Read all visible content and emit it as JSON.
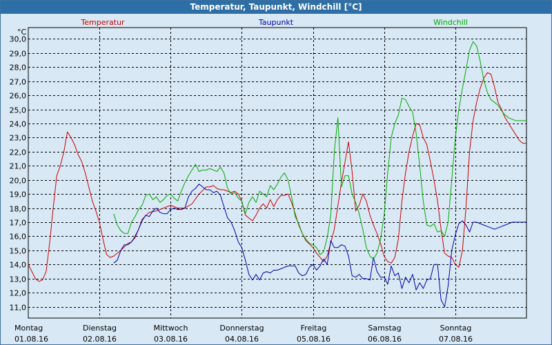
{
  "window": {
    "title": "Temperatur, Taupunkt, Windchill [°C]"
  },
  "colors": {
    "temperatur": "#cc0000",
    "taupunkt": "#0000aa",
    "windchill": "#00aa00",
    "background": "#d8e8f4",
    "titlebar": "#2d6ea6"
  },
  "chart_data": {
    "type": "line",
    "title": "Temperatur, Taupunkt, Windchill [°C]",
    "ylabel": "°C",
    "xlabel": "",
    "ylim": [
      10.2,
      30.8
    ],
    "xlim": [
      0,
      7
    ],
    "grid": true,
    "legend_placement": "top",
    "yticks": [
      "30,0",
      "29,0",
      "28,0",
      "27,0",
      "26,0",
      "25,0",
      "24,0",
      "23,0",
      "22,0",
      "21,0",
      "20,0",
      "19,0",
      "18,0",
      "17,0",
      "16,0",
      "15,0",
      "14,0",
      "13,0",
      "12,0",
      "11,0"
    ],
    "ytick_values": [
      30,
      29,
      28,
      27,
      26,
      25,
      24,
      23,
      22,
      21,
      20,
      19,
      18,
      17,
      16,
      15,
      14,
      13,
      12,
      11
    ],
    "xticks": [
      {
        "day": "Montag",
        "date": "01.08.16"
      },
      {
        "day": "Dienstag",
        "date": "02.08.16"
      },
      {
        "day": "Mittwoch",
        "date": "03.08.16"
      },
      {
        "day": "Donnerstag",
        "date": "04.08.16"
      },
      {
        "day": "Freitag",
        "date": "05.08.16"
      },
      {
        "day": "Samstag",
        "date": "06.08.16"
      },
      {
        "day": "Sonntag",
        "date": "07.08.16"
      }
    ],
    "series": [
      {
        "name": "Temperatur",
        "color": "#cc0000",
        "x": [
          0,
          0.05,
          0.1,
          0.15,
          0.2,
          0.25,
          0.3,
          0.35,
          0.4,
          0.45,
          0.5,
          0.55,
          0.6,
          0.65,
          0.7,
          0.75,
          0.8,
          0.85,
          0.9,
          0.95,
          1.0,
          1.05,
          1.1,
          1.15,
          1.2,
          1.3,
          1.4,
          1.45,
          1.5,
          1.55,
          1.6,
          1.7,
          1.8,
          1.9,
          2.0,
          2.1,
          2.2,
          2.3,
          2.4,
          2.5,
          2.55,
          2.6,
          2.65,
          2.7,
          2.75,
          2.8,
          2.85,
          2.9,
          2.95,
          3.0,
          3.05,
          3.1,
          3.15,
          3.2,
          3.25,
          3.3,
          3.35,
          3.4,
          3.45,
          3.5,
          3.55,
          3.6,
          3.65,
          3.7,
          3.75,
          3.8,
          3.85,
          3.9,
          4.0,
          4.05,
          4.1,
          4.15,
          4.2,
          4.3,
          4.4,
          4.5,
          4.55,
          4.6,
          4.65,
          4.7,
          4.75,
          4.8,
          4.85,
          4.9,
          4.95,
          5.0,
          5.05,
          5.1,
          5.15,
          5.2,
          5.25,
          5.3,
          5.35,
          5.4,
          5.45,
          5.5,
          5.55,
          5.6,
          5.65,
          5.7,
          5.75,
          5.8,
          5.85,
          5.9,
          5.95,
          6.0,
          6.05,
          6.1,
          6.15,
          6.2,
          6.25,
          6.3,
          6.35,
          6.4,
          6.45,
          6.5,
          6.55,
          6.6,
          6.65,
          6.7,
          6.75,
          6.8,
          6.85,
          6.9,
          6.95,
          7.0
        ],
        "values": [
          14.0,
          13.5,
          13.0,
          12.8,
          12.9,
          13.5,
          15.5,
          18.0,
          20.3,
          21.0,
          22.0,
          23.4,
          23.0,
          22.5,
          21.8,
          21.3,
          20.5,
          19.5,
          18.5,
          17.8,
          17.0,
          15.8,
          14.7,
          14.5,
          14.6,
          15.0,
          15.5,
          15.6,
          15.9,
          16.5,
          17.2,
          17.7,
          17.8,
          18.0,
          18.2,
          18.0,
          18.0,
          18.3,
          19.0,
          19.5,
          19.5,
          19.6,
          19.4,
          19.3,
          19.3,
          19.2,
          19.1,
          19.2,
          19.0,
          18.5,
          17.5,
          17.3,
          17.1,
          17.5,
          18.0,
          18.3,
          18.0,
          18.6,
          18.1,
          18.6,
          18.9,
          18.9,
          19.0,
          18.4,
          17.6,
          16.8,
          16.2,
          15.7,
          15.2,
          14.8,
          14.5,
          14.2,
          14.6,
          16.5,
          19.8,
          22.7,
          20.6,
          17.8,
          18.2,
          19.0,
          18.5,
          17.5,
          16.8,
          16.2,
          15.5,
          14.6,
          14.2,
          14.1,
          14.5,
          15.8,
          18.5,
          20.5,
          22.0,
          23.1,
          24.0,
          23.9,
          23.0,
          22.5,
          21.3,
          20.0,
          18.5,
          16.5,
          14.8,
          14.6,
          14.5,
          14.0,
          13.8,
          15.0,
          18.0,
          22.0,
          24.2,
          25.5,
          26.5,
          27.2,
          27.6,
          27.5,
          26.6,
          25.5,
          25.0,
          24.4,
          24.0,
          23.6,
          23.2,
          22.8,
          22.6,
          22.6
        ]
      },
      {
        "name": "Taupunkt",
        "color": "#0000aa",
        "x": [
          1.2,
          1.25,
          1.3,
          1.35,
          1.4,
          1.45,
          1.5,
          1.55,
          1.6,
          1.65,
          1.7,
          1.75,
          1.8,
          1.85,
          1.9,
          1.95,
          2.0,
          2.05,
          2.1,
          2.15,
          2.2,
          2.25,
          2.3,
          2.35,
          2.4,
          2.45,
          2.5,
          2.55,
          2.6,
          2.65,
          2.7,
          2.75,
          2.8,
          2.85,
          2.9,
          2.95,
          3.0,
          3.05,
          3.1,
          3.15,
          3.2,
          3.25,
          3.3,
          3.35,
          3.4,
          3.45,
          3.5,
          3.55,
          3.6,
          3.65,
          3.7,
          3.75,
          3.8,
          3.85,
          3.9,
          3.95,
          4.0,
          4.05,
          4.1,
          4.15,
          4.2,
          4.25,
          4.3,
          4.35,
          4.4,
          4.45,
          4.5,
          4.55,
          4.6,
          4.65,
          4.7,
          4.75,
          4.8,
          4.85,
          4.9,
          4.95,
          5.0,
          5.05,
          5.1,
          5.15,
          5.2,
          5.25,
          5.3,
          5.35,
          5.4,
          5.45,
          5.5,
          5.55,
          5.6,
          5.65,
          5.7,
          5.75,
          5.8,
          5.85,
          5.9,
          5.95,
          6.0,
          6.05,
          6.1,
          6.15,
          6.2,
          6.25,
          6.3,
          6.35,
          6.4,
          6.45,
          6.5,
          6.55,
          6.6,
          6.65,
          6.7,
          6.75,
          6.8,
          6.85,
          6.9,
          6.95,
          7.0
        ],
        "values": [
          14.1,
          14.3,
          15.0,
          15.4,
          15.4,
          15.6,
          16.0,
          16.5,
          17.1,
          17.5,
          17.4,
          17.8,
          18.0,
          17.7,
          17.6,
          17.6,
          17.9,
          18.0,
          17.9,
          17.9,
          18.0,
          18.8,
          19.2,
          19.4,
          19.7,
          19.5,
          19.3,
          19.3,
          19.1,
          19.2,
          18.9,
          18.1,
          17.3,
          17.0,
          16.4,
          15.6,
          15.2,
          14.3,
          13.3,
          12.9,
          13.3,
          12.9,
          13.4,
          13.5,
          13.4,
          13.6,
          13.6,
          13.7,
          13.8,
          13.9,
          13.9,
          13.9,
          13.4,
          13.2,
          13.3,
          13.8,
          14.0,
          13.6,
          13.9,
          14.4,
          14.0,
          15.7,
          15.2,
          15.2,
          15.4,
          15.3,
          14.6,
          13.2,
          13.1,
          13.3,
          13.0,
          13.0,
          12.9,
          14.5,
          13.5,
          13.1,
          13.1,
          12.6,
          13.9,
          13.2,
          13.4,
          12.3,
          13.1,
          12.7,
          13.3,
          12.2,
          12.7,
          12.3,
          12.9,
          13.0,
          14.0,
          14.0,
          11.5,
          11.0,
          12.5,
          15.0,
          16.1,
          16.9,
          17.1,
          16.8,
          16.3,
          17.0,
          17.0,
          16.9,
          16.8,
          16.7,
          16.6,
          16.5,
          16.6,
          16.7,
          16.8,
          16.9,
          17.0,
          17.0,
          17.0,
          17.0,
          17.0
        ]
      },
      {
        "name": "Windchill",
        "color": "#00aa00",
        "x": [
          1.2,
          1.25,
          1.3,
          1.35,
          1.4,
          1.45,
          1.5,
          1.55,
          1.6,
          1.65,
          1.7,
          1.75,
          1.8,
          1.85,
          1.9,
          1.95,
          2.0,
          2.05,
          2.1,
          2.15,
          2.2,
          2.25,
          2.3,
          2.35,
          2.4,
          2.45,
          2.5,
          2.55,
          2.6,
          2.65,
          2.7,
          2.75,
          2.8,
          2.85,
          2.9,
          2.95,
          3.0,
          3.05,
          3.1,
          3.15,
          3.2,
          3.25,
          3.3,
          3.35,
          3.4,
          3.45,
          3.5,
          3.55,
          3.6,
          3.65,
          3.7,
          3.75,
          3.8,
          3.85,
          3.9,
          3.95,
          4.0,
          4.05,
          4.1,
          4.15,
          4.2,
          4.25,
          4.3,
          4.35,
          4.4,
          4.45,
          4.5,
          4.55,
          4.6,
          4.65,
          4.7,
          4.75,
          4.8,
          4.85,
          4.9,
          4.95,
          5.0,
          5.05,
          5.1,
          5.15,
          5.2,
          5.25,
          5.3,
          5.35,
          5.4,
          5.45,
          5.5,
          5.55,
          5.6,
          5.65,
          5.7,
          5.75,
          5.8,
          5.85,
          5.9,
          5.95,
          6.0,
          6.05,
          6.1,
          6.15,
          6.2,
          6.25,
          6.3,
          6.35,
          6.4,
          6.45,
          6.5,
          6.55,
          6.6,
          6.65,
          6.7,
          6.75,
          6.8,
          6.85,
          6.9,
          6.95,
          7.0
        ],
        "values": [
          17.6,
          16.8,
          16.4,
          16.2,
          16.2,
          17.0,
          17.4,
          17.9,
          18.2,
          18.9,
          19.0,
          18.6,
          18.8,
          18.4,
          18.6,
          18.9,
          19.0,
          18.7,
          18.5,
          19.2,
          19.8,
          20.3,
          20.7,
          21.1,
          20.6,
          20.7,
          20.7,
          20.8,
          20.7,
          20.6,
          20.9,
          20.5,
          19.4,
          19.0,
          19.1,
          18.7,
          18.5,
          17.6,
          18.4,
          18.8,
          18.4,
          19.2,
          19.0,
          18.8,
          19.6,
          19.3,
          19.7,
          20.2,
          20.5,
          20.0,
          18.8,
          17.4,
          16.9,
          16.2,
          15.8,
          15.5,
          15.4,
          15.2,
          14.7,
          14.9,
          15.9,
          17.5,
          22.0,
          24.4,
          19.5,
          20.3,
          20.3,
          19.0,
          18.4,
          17.6,
          16.5,
          15.2,
          14.6,
          14.4,
          14.8,
          15.8,
          17.5,
          20.5,
          23.0,
          24.0,
          24.6,
          25.8,
          25.7,
          25.2,
          24.8,
          23.3,
          21.0,
          18.5,
          16.8,
          16.7,
          16.9,
          16.3,
          16.4,
          16.0,
          17.0,
          20.0,
          23.0,
          25.0,
          26.5,
          27.8,
          29.2,
          29.8,
          29.5,
          28.4,
          27.1,
          26.2,
          25.7,
          25.5,
          25.3,
          24.9,
          24.6,
          24.4,
          24.3,
          24.2,
          24.2,
          24.2,
          24.2
        ]
      }
    ]
  }
}
